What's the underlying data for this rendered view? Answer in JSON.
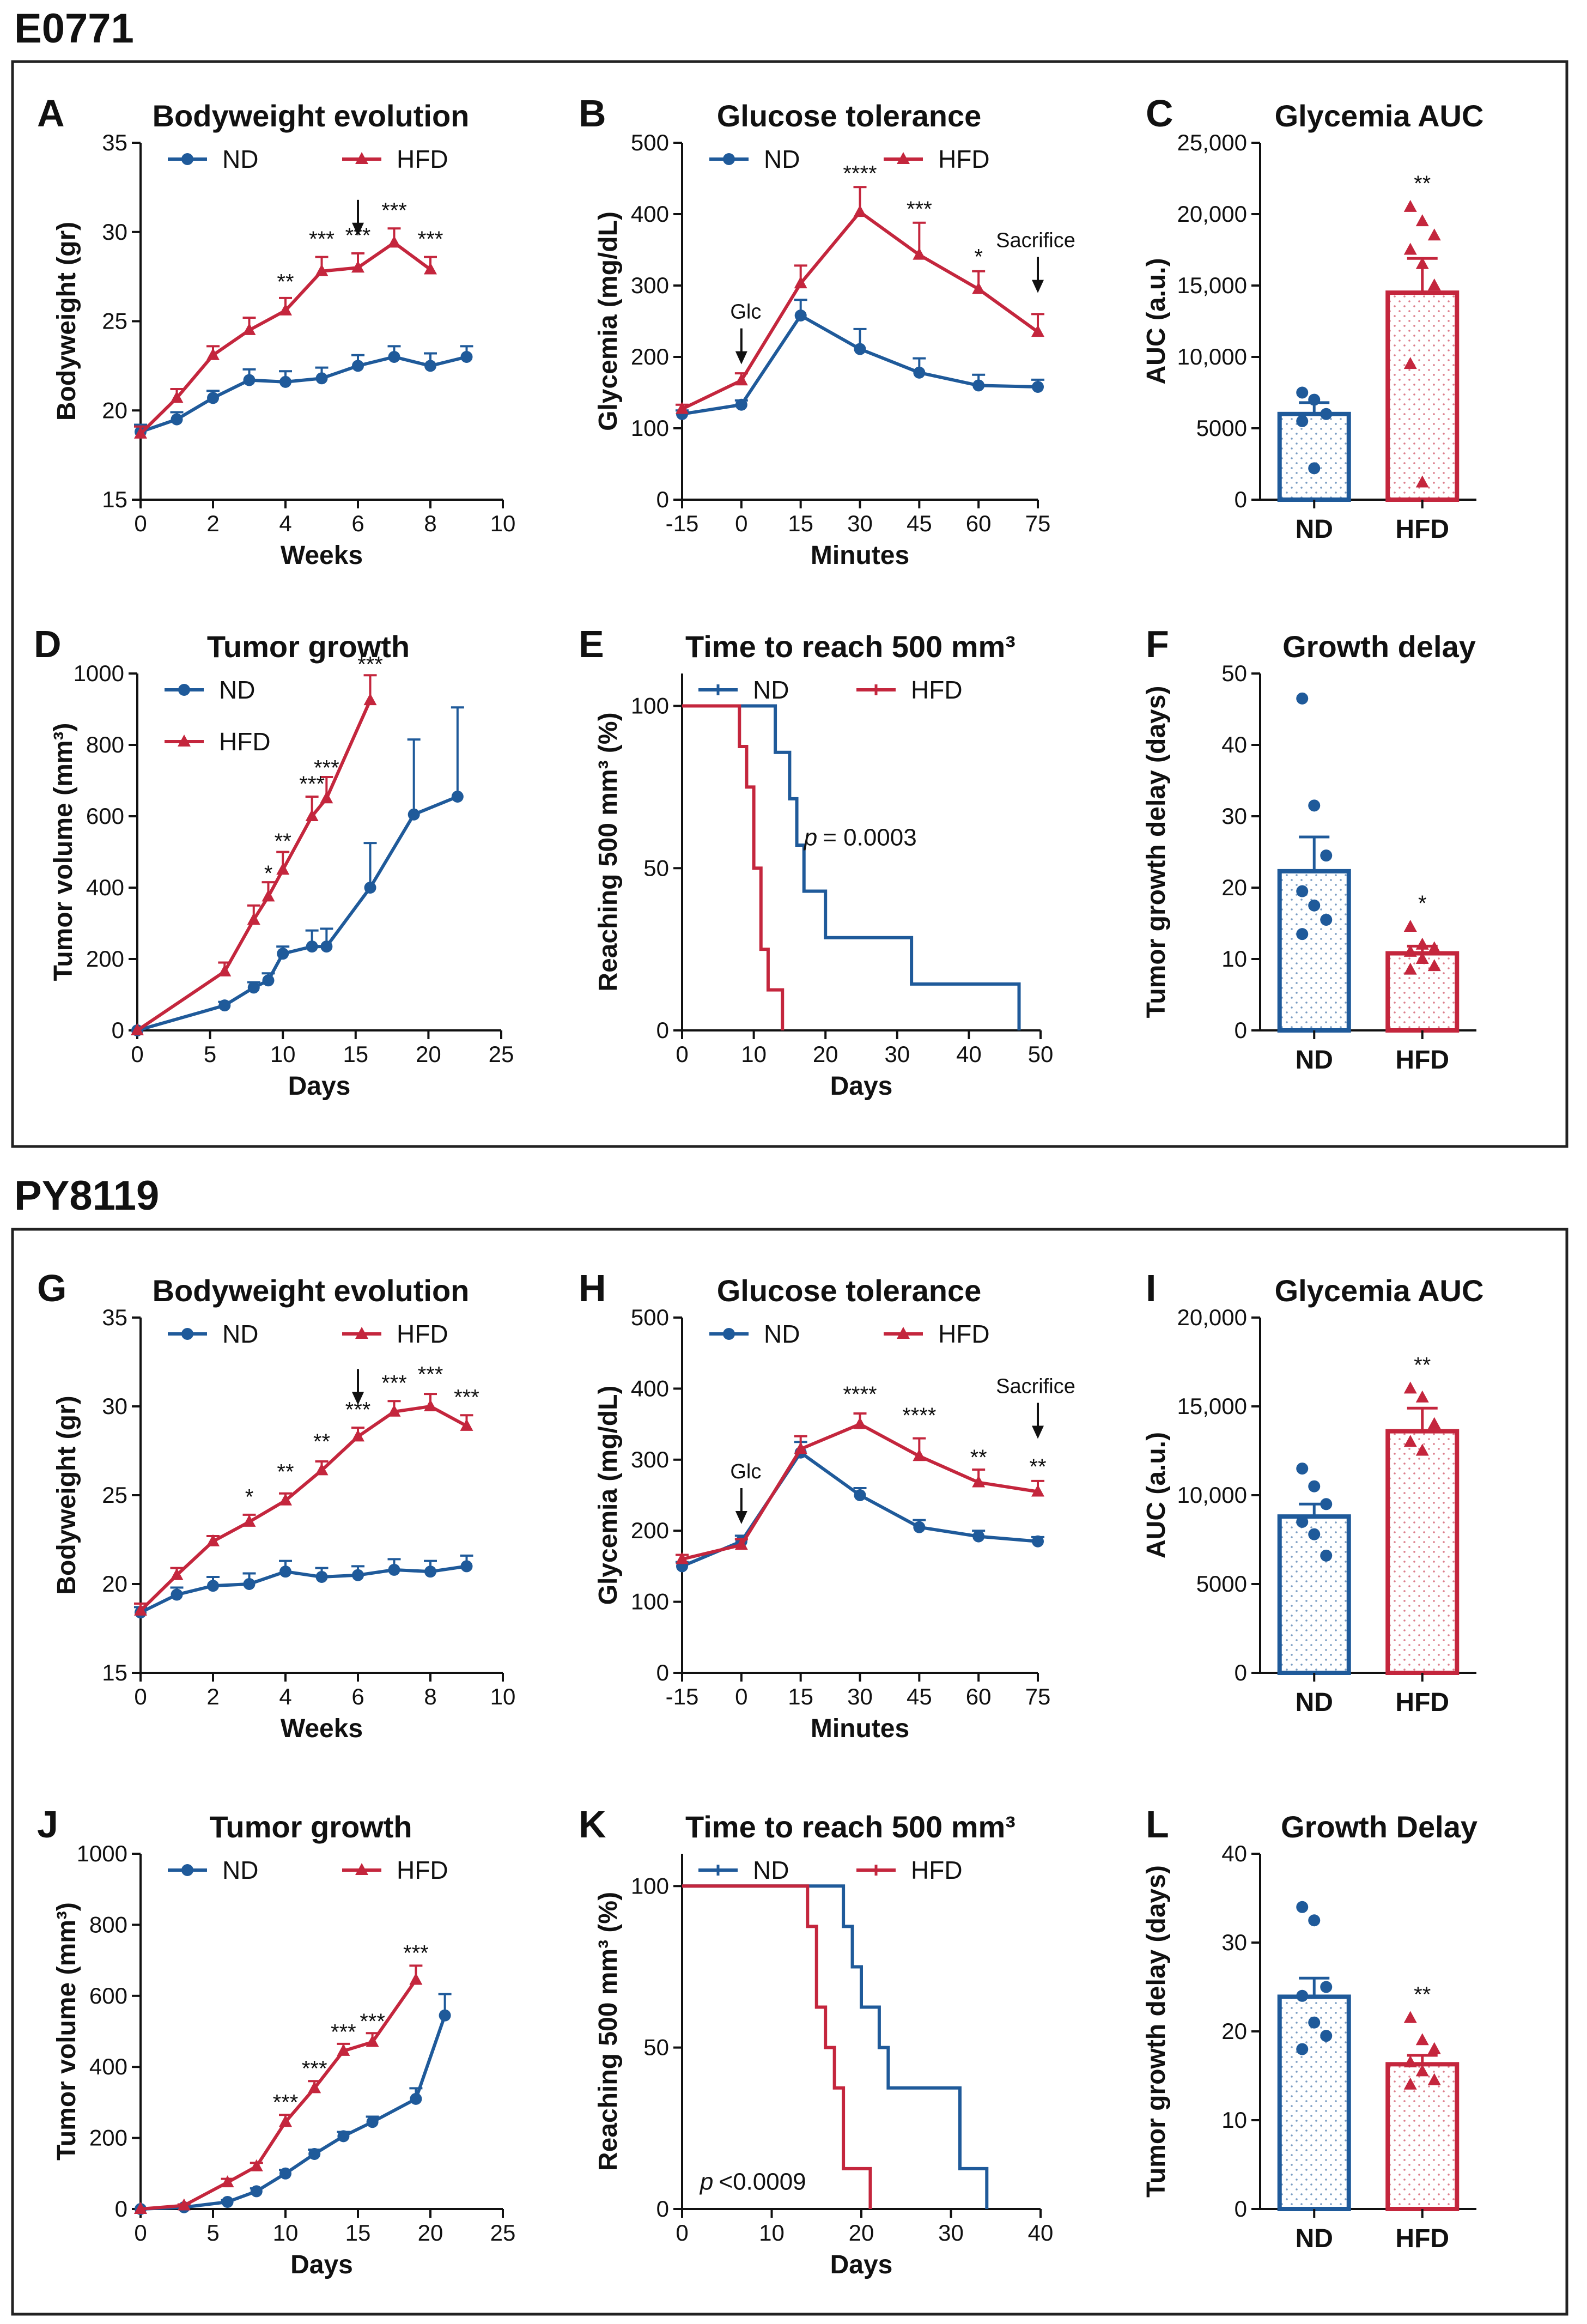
{
  "figure": {
    "sections": [
      {
        "label": "E0771"
      },
      {
        "label": "PY8119"
      }
    ],
    "colors": {
      "nd": "#1f5a9a",
      "hfd": "#c4263d",
      "frame": "#222222"
    }
  },
  "chart_data": [
    {
      "id": "A",
      "letter": "A",
      "type": "line",
      "title": "Bodyweight evolution",
      "xlabel": "Weeks",
      "ylabel": "Bodyweight (gr)",
      "xlim": [
        0,
        10
      ],
      "ylim": [
        15,
        35
      ],
      "xticks": [
        0,
        2,
        4,
        6,
        8,
        10
      ],
      "yticks": [
        15,
        20,
        25,
        30,
        35
      ],
      "legend": [
        "ND",
        "HFD"
      ],
      "series": [
        {
          "name": "ND",
          "x": [
            0,
            1,
            2,
            3,
            4,
            5,
            6,
            7,
            8,
            9
          ],
          "y": [
            18.8,
            19.5,
            20.7,
            21.7,
            21.6,
            21.8,
            22.5,
            23.0,
            22.5,
            23.0
          ],
          "err": [
            0.4,
            0.4,
            0.4,
            0.6,
            0.6,
            0.6,
            0.6,
            0.6,
            0.7,
            0.6
          ]
        },
        {
          "name": "HFD",
          "x": [
            0,
            1,
            2,
            3,
            4,
            5,
            6,
            7,
            8
          ],
          "y": [
            18.7,
            20.7,
            23.1,
            24.5,
            25.6,
            27.8,
            28.0,
            29.4,
            27.9
          ],
          "err": [
            0.4,
            0.5,
            0.5,
            0.7,
            0.7,
            0.8,
            0.8,
            0.8,
            0.7
          ]
        }
      ],
      "annotations": [
        {
          "text": "**",
          "x": 4,
          "y": 26.8
        },
        {
          "text": "***",
          "x": 5,
          "y": 29.2
        },
        {
          "text": "***",
          "x": 6,
          "y": 29.4
        },
        {
          "text": "***",
          "x": 7,
          "y": 30.8
        },
        {
          "text": "***",
          "x": 8,
          "y": 29.2
        }
      ],
      "arrows": [
        {
          "x": 6,
          "y": 31.8,
          "label": ""
        }
      ]
    },
    {
      "id": "B",
      "letter": "B",
      "type": "line",
      "title": "Glucose tolerance",
      "xlabel": "Minutes",
      "ylabel": "Glycemia (mg/dL)",
      "xlim": [
        -15,
        75
      ],
      "ylim": [
        0,
        500
      ],
      "xticks": [
        -15,
        0,
        15,
        30,
        45,
        60,
        75
      ],
      "yticks": [
        0,
        100,
        200,
        300,
        400,
        500
      ],
      "legend": [
        "ND",
        "HFD"
      ],
      "series": [
        {
          "name": "ND",
          "x": [
            -15,
            0,
            15,
            30,
            45,
            60,
            75
          ],
          "y": [
            120,
            133,
            258,
            211,
            178,
            160,
            158
          ],
          "err": [
            5,
            6,
            22,
            28,
            20,
            15,
            10
          ]
        },
        {
          "name": "HFD",
          "x": [
            -15,
            0,
            15,
            30,
            45,
            60,
            75
          ],
          "y": [
            127,
            167,
            303,
            403,
            343,
            295,
            235
          ],
          "err": [
            6,
            10,
            25,
            35,
            45,
            25,
            25
          ]
        }
      ],
      "annotations": [
        {
          "text": "****",
          "x": 30,
          "y": 447
        },
        {
          "text": "***",
          "x": 45,
          "y": 397
        },
        {
          "text": "*",
          "x": 60,
          "y": 330
        }
      ],
      "arrows": [
        {
          "x": 0,
          "y": 240,
          "label": "Glc"
        },
        {
          "x": 75,
          "y": 340,
          "label": "Sacrifice"
        }
      ]
    },
    {
      "id": "C",
      "letter": "C",
      "type": "bar",
      "title": "Glycemia AUC",
      "xlabel": "",
      "ylabel": "AUC (a.u.)",
      "ylim": [
        0,
        25000
      ],
      "yticks": [
        0,
        5000,
        10000,
        15000,
        20000,
        25000
      ],
      "ytick_labels": [
        "0",
        "5000",
        "10,000",
        "15,000",
        "20,000",
        "25,000"
      ],
      "categories": [
        "ND",
        "HFD"
      ],
      "values": [
        6000,
        14500
      ],
      "err": [
        800,
        2400
      ],
      "points": [
        [
          7500,
          7000,
          6000,
          5500,
          2200
        ],
        [
          20500,
          19500,
          18500,
          17500,
          16500,
          15000,
          9500,
          1200
        ]
      ],
      "annotations": [
        {
          "cat": 1,
          "text": "**"
        }
      ]
    },
    {
      "id": "D",
      "letter": "D",
      "type": "line",
      "title": "Tumor growth",
      "xlabel": "Days",
      "ylabel": "Tumor volume (mm³)",
      "xlim": [
        0,
        25
      ],
      "ylim": [
        0,
        1000
      ],
      "xticks": [
        0,
        5,
        10,
        15,
        20,
        25
      ],
      "yticks": [
        0,
        200,
        400,
        600,
        800,
        1000
      ],
      "legend": [
        "ND",
        "HFD"
      ],
      "series": [
        {
          "name": "ND",
          "x": [
            0,
            6,
            8,
            9,
            10,
            12,
            13,
            16,
            19,
            22
          ],
          "y": [
            0,
            70,
            120,
            140,
            215,
            235,
            235,
            400,
            605,
            655
          ],
          "err": [
            0,
            10,
            15,
            20,
            20,
            45,
            50,
            125,
            210,
            250
          ]
        },
        {
          "name": "HFD",
          "x": [
            0,
            6,
            8,
            9,
            10,
            12,
            13,
            16
          ],
          "y": [
            0,
            165,
            310,
            375,
            450,
            600,
            650,
            925
          ],
          "err": [
            0,
            25,
            40,
            40,
            50,
            55,
            60,
            70
          ]
        }
      ],
      "annotations": [
        {
          "text": "*",
          "x": 9,
          "y": 420
        },
        {
          "text": "**",
          "x": 10,
          "y": 510
        },
        {
          "text": "***",
          "x": 12,
          "y": 670
        },
        {
          "text": "***",
          "x": 13,
          "y": 715
        },
        {
          "text": "***",
          "x": 16,
          "y": 1005
        }
      ]
    },
    {
      "id": "E",
      "letter": "E",
      "type": "line",
      "title": "Time to reach 500 mm³",
      "xlabel": "Days",
      "ylabel": "Reaching 500 mm³ (%)",
      "xlim": [
        0,
        50
      ],
      "ylim": [
        0,
        110
      ],
      "xticks": [
        0,
        10,
        20,
        30,
        40,
        50
      ],
      "yticks": [
        0,
        50,
        100
      ],
      "legend": [
        "ND",
        "HFD"
      ],
      "step": true,
      "series": [
        {
          "name": "ND",
          "x": [
            0,
            13,
            15,
            16,
            17,
            20,
            32,
            47
          ],
          "y": [
            100,
            85.7,
            71.4,
            57.1,
            42.9,
            28.6,
            14.3,
            0
          ]
        },
        {
          "name": "HFD",
          "x": [
            0,
            8,
            9,
            10,
            11,
            12,
            14
          ],
          "y": [
            100,
            87.5,
            75,
            50,
            25,
            12.5,
            0
          ]
        }
      ],
      "p_value": "= 0.0003",
      "p_symbol": "p",
      "p_pos": {
        "x": 17,
        "y": 57
      }
    },
    {
      "id": "F",
      "letter": "F",
      "type": "bar",
      "title": "Growth delay",
      "xlabel": "",
      "ylabel": "Tumor growth delay (days)",
      "ylim": [
        0,
        50
      ],
      "yticks": [
        0,
        10,
        20,
        30,
        40,
        50
      ],
      "ytick_labels": [
        "0",
        "10",
        "20",
        "30",
        "40",
        "50"
      ],
      "categories": [
        "ND",
        "HFD"
      ],
      "values": [
        22.3,
        10.8
      ],
      "err": [
        4.8,
        1.0
      ],
      "points": [
        [
          46.5,
          31.5,
          24.5,
          19.5,
          17.5,
          15.5,
          13.5
        ],
        [
          14.5,
          12.0,
          11.5,
          11.0,
          10.0,
          9.0,
          8.5
        ]
      ],
      "annotations": [
        {
          "cat": 1,
          "text": "*"
        }
      ]
    },
    {
      "id": "G",
      "letter": "G",
      "type": "line",
      "title": "Bodyweight evolution",
      "xlabel": "Weeks",
      "ylabel": "Bodyweight (gr)",
      "xlim": [
        0,
        10
      ],
      "ylim": [
        15,
        35
      ],
      "xticks": [
        0,
        2,
        4,
        6,
        8,
        10
      ],
      "yticks": [
        15,
        20,
        25,
        30,
        35
      ],
      "legend": [
        "ND",
        "HFD"
      ],
      "series": [
        {
          "name": "ND",
          "x": [
            0,
            1,
            2,
            3,
            4,
            5,
            6,
            7,
            8,
            9
          ],
          "y": [
            18.4,
            19.4,
            19.9,
            20.0,
            20.7,
            20.4,
            20.5,
            20.8,
            20.7,
            21.0
          ],
          "err": [
            0.3,
            0.4,
            0.5,
            0.6,
            0.6,
            0.5,
            0.5,
            0.6,
            0.6,
            0.6
          ]
        },
        {
          "name": "HFD",
          "x": [
            0,
            1,
            2,
            3,
            4,
            5,
            6,
            7,
            8,
            9
          ],
          "y": [
            18.5,
            20.5,
            22.4,
            23.5,
            24.7,
            26.4,
            28.3,
            29.7,
            30.0,
            28.9
          ],
          "err": [
            0.4,
            0.4,
            0.3,
            0.4,
            0.4,
            0.5,
            0.5,
            0.6,
            0.7,
            0.6
          ]
        }
      ],
      "annotations": [
        {
          "text": "*",
          "x": 3,
          "y": 24.5
        },
        {
          "text": "**",
          "x": 4,
          "y": 25.9
        },
        {
          "text": "**",
          "x": 5,
          "y": 27.6
        },
        {
          "text": "***",
          "x": 6,
          "y": 29.4
        },
        {
          "text": "***",
          "x": 7,
          "y": 30.9
        },
        {
          "text": "***",
          "x": 8,
          "y": 31.4
        },
        {
          "text": "***",
          "x": 9,
          "y": 30.1
        }
      ],
      "arrows": [
        {
          "x": 6,
          "y": 32.1,
          "label": ""
        }
      ]
    },
    {
      "id": "H",
      "letter": "H",
      "type": "line",
      "title": "Glucose tolerance",
      "xlabel": "Minutes",
      "ylabel": "Glycemia (mg/dL)",
      "xlim": [
        -15,
        75
      ],
      "ylim": [
        0,
        500
      ],
      "xticks": [
        -15,
        0,
        15,
        30,
        45,
        60,
        75
      ],
      "yticks": [
        0,
        100,
        200,
        300,
        400,
        500
      ],
      "legend": [
        "ND",
        "HFD"
      ],
      "series": [
        {
          "name": "ND",
          "x": [
            -15,
            0,
            15,
            30,
            45,
            60,
            75
          ],
          "y": [
            150,
            185,
            310,
            250,
            205,
            192,
            185
          ],
          "err": [
            6,
            8,
            15,
            10,
            10,
            8,
            6
          ]
        },
        {
          "name": "HFD",
          "x": [
            -15,
            0,
            15,
            30,
            45,
            60,
            75
          ],
          "y": [
            160,
            180,
            315,
            350,
            305,
            268,
            255
          ],
          "err": [
            6,
            8,
            18,
            15,
            25,
            18,
            15
          ]
        }
      ],
      "annotations": [
        {
          "text": "****",
          "x": 30,
          "y": 382
        },
        {
          "text": "****",
          "x": 45,
          "y": 352
        },
        {
          "text": "**",
          "x": 60,
          "y": 293
        },
        {
          "text": "**",
          "x": 75,
          "y": 280
        }
      ],
      "arrows": [
        {
          "x": 0,
          "y": 260,
          "label": "Glc"
        },
        {
          "x": 75,
          "y": 380,
          "label": "Sacrifice"
        }
      ]
    },
    {
      "id": "I",
      "letter": "I",
      "type": "bar",
      "title": "Glycemia AUC",
      "xlabel": "",
      "ylabel": "AUC (a.u.)",
      "ylim": [
        0,
        20000
      ],
      "yticks": [
        0,
        5000,
        10000,
        15000,
        20000
      ],
      "ytick_labels": [
        "0",
        "5000",
        "10,000",
        "15,000",
        "20,000"
      ],
      "categories": [
        "ND",
        "HFD"
      ],
      "values": [
        8800,
        13600
      ],
      "err": [
        700,
        1300
      ],
      "points": [
        [
          11500,
          10500,
          9500,
          8500,
          7800,
          6600
        ],
        [
          16000,
          15500,
          14000,
          13000,
          12500
        ]
      ],
      "annotations": [
        {
          "cat": 1,
          "text": "**"
        }
      ]
    },
    {
      "id": "J",
      "letter": "J",
      "type": "line",
      "title": "Tumor growth",
      "xlabel": "Days",
      "ylabel": "Tumor volume (mm³)",
      "xlim": [
        0,
        25
      ],
      "ylim": [
        0,
        1000
      ],
      "xticks": [
        0,
        5,
        10,
        15,
        20,
        25
      ],
      "yticks": [
        0,
        200,
        400,
        600,
        800,
        1000
      ],
      "legend": [
        "ND",
        "HFD"
      ],
      "series": [
        {
          "name": "ND",
          "x": [
            0,
            3,
            6,
            8,
            10,
            12,
            14,
            16,
            19,
            21
          ],
          "y": [
            0,
            5,
            20,
            50,
            100,
            155,
            205,
            245,
            310,
            545
          ],
          "err": [
            0,
            2,
            5,
            8,
            10,
            12,
            12,
            15,
            30,
            60
          ]
        },
        {
          "name": "HFD",
          "x": [
            0,
            3,
            6,
            8,
            10,
            12,
            14,
            16,
            19
          ],
          "y": [
            0,
            10,
            75,
            120,
            245,
            340,
            445,
            470,
            645
          ],
          "err": [
            0,
            3,
            10,
            10,
            20,
            20,
            20,
            25,
            40
          ]
        }
      ],
      "annotations": [
        {
          "text": "***",
          "x": 10,
          "y": 280
        },
        {
          "text": "***",
          "x": 12,
          "y": 375
        },
        {
          "text": "***",
          "x": 14,
          "y": 478
        },
        {
          "text": "***",
          "x": 16,
          "y": 508
        },
        {
          "text": "***",
          "x": 19,
          "y": 700
        }
      ]
    },
    {
      "id": "K",
      "letter": "K",
      "type": "line",
      "title": "Time to reach 500 mm³",
      "xlabel": "Days",
      "ylabel": "Reaching 500 mm³ (%)",
      "xlim": [
        0,
        40
      ],
      "ylim": [
        0,
        110
      ],
      "xticks": [
        0,
        10,
        20,
        30,
        40
      ],
      "yticks": [
        0,
        50,
        100
      ],
      "legend": [
        "ND",
        "HFD"
      ],
      "step": true,
      "series": [
        {
          "name": "ND",
          "x": [
            0,
            18,
            19,
            20,
            22,
            23,
            31,
            34
          ],
          "y": [
            100,
            87.5,
            75,
            62.5,
            50,
            37.5,
            12.5,
            0
          ]
        },
        {
          "name": "HFD",
          "x": [
            0,
            14,
            15,
            16,
            17,
            18,
            21
          ],
          "y": [
            100,
            87.5,
            62.5,
            50,
            37.5,
            12.5,
            0
          ]
        }
      ],
      "p_value": "<0.0009",
      "p_symbol": "p",
      "p_pos": {
        "x": 2,
        "y": 6
      }
    },
    {
      "id": "L",
      "letter": "L",
      "type": "bar",
      "title": "Growth Delay",
      "xlabel": "",
      "ylabel": "Tumor growth delay (days)",
      "ylim": [
        0,
        40
      ],
      "yticks": [
        0,
        10,
        20,
        30,
        40
      ],
      "ytick_labels": [
        "0",
        "10",
        "20",
        "30",
        "40"
      ],
      "categories": [
        "ND",
        "HFD"
      ],
      "values": [
        23.9,
        16.3
      ],
      "err": [
        2.1,
        1.0
      ],
      "points": [
        [
          34.0,
          32.5,
          25.0,
          24.0,
          21.0,
          19.5,
          18.0
        ],
        [
          21.5,
          19.0,
          18.0,
          16.5,
          15.5,
          14.5,
          14.0
        ]
      ],
      "annotations": [
        {
          "cat": 1,
          "text": "**"
        }
      ]
    }
  ]
}
